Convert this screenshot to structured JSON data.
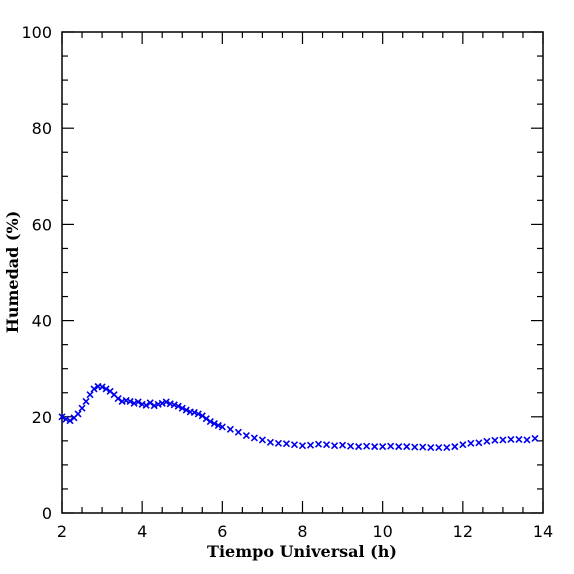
{
  "chart_data": {
    "type": "scatter",
    "xlabel": "Tiempo Universal (h)",
    "ylabel": "Humedad (%)",
    "xlim": [
      2,
      14
    ],
    "ylim": [
      0,
      100
    ],
    "x_major_ticks": [
      2,
      4,
      6,
      8,
      10,
      12,
      14
    ],
    "y_major_ticks": [
      0,
      20,
      40,
      60,
      80,
      100
    ],
    "x_tick_labels": [
      "2",
      "4",
      "6",
      "8",
      "10",
      "12",
      "14"
    ],
    "y_tick_labels": [
      "0",
      "20",
      "40",
      "60",
      "80",
      "100"
    ],
    "grid": false,
    "marker": "x",
    "marker_color": "#0000ee",
    "series": [
      {
        "name": "",
        "x": [
          2.0,
          2.1,
          2.2,
          2.3,
          2.4,
          2.5,
          2.6,
          2.7,
          2.8,
          2.9,
          3.0,
          3.1,
          3.2,
          3.3,
          3.4,
          3.5,
          3.6,
          3.7,
          3.8,
          3.9,
          4.0,
          4.1,
          4.2,
          4.3,
          4.4,
          4.5,
          4.6,
          4.7,
          4.8,
          4.9,
          5.0,
          5.1,
          5.2,
          5.3,
          5.4,
          5.5,
          5.6,
          5.7,
          5.8,
          5.9,
          6.0,
          6.2,
          6.4,
          6.6,
          6.8,
          7.0,
          7.2,
          7.4,
          7.6,
          7.8,
          8.0,
          8.2,
          8.4,
          8.6,
          8.8,
          9.0,
          9.2,
          9.4,
          9.6,
          9.8,
          10.0,
          10.2,
          10.4,
          10.6,
          10.8,
          11.0,
          11.2,
          11.4,
          11.6,
          11.8,
          12.0,
          12.2,
          12.4,
          12.6,
          12.8,
          13.0,
          13.2,
          13.4,
          13.6,
          13.8
        ],
        "y": [
          20.0,
          19.5,
          19.2,
          19.8,
          20.6,
          21.8,
          23.2,
          24.6,
          25.8,
          26.3,
          26.2,
          25.8,
          25.3,
          24.6,
          23.8,
          23.2,
          23.4,
          23.2,
          22.8,
          23.1,
          22.6,
          22.4,
          22.9,
          22.3,
          22.6,
          22.8,
          23.1,
          22.7,
          22.5,
          22.2,
          21.8,
          21.4,
          21.0,
          20.9,
          20.6,
          20.2,
          19.6,
          19.0,
          18.6,
          18.2,
          17.9,
          17.4,
          16.8,
          16.1,
          15.6,
          15.2,
          14.7,
          14.5,
          14.4,
          14.2,
          14.0,
          14.1,
          14.3,
          14.2,
          14.0,
          14.1,
          13.9,
          13.8,
          13.9,
          13.8,
          13.8,
          13.9,
          13.8,
          13.8,
          13.7,
          13.7,
          13.6,
          13.6,
          13.6,
          13.8,
          14.2,
          14.5,
          14.6,
          14.9,
          15.1,
          15.2,
          15.3,
          15.3,
          15.2,
          15.5
        ]
      }
    ]
  }
}
